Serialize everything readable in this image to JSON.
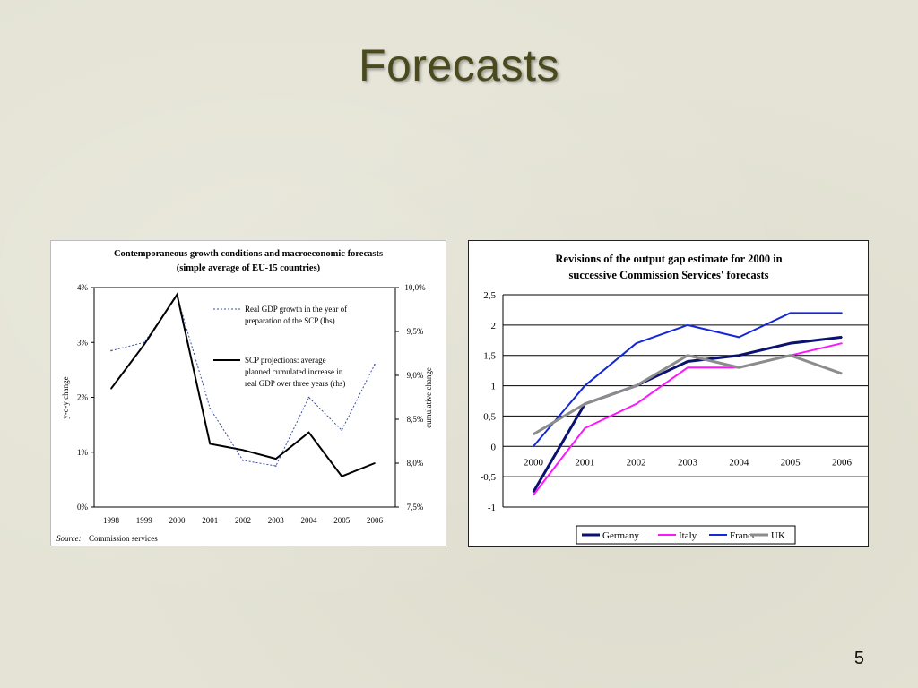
{
  "slide": {
    "title": "Forecasts",
    "page_number": "5"
  },
  "chart_data": [
    {
      "type": "line",
      "title": "Contemporaneous growth conditions and macroeconomic forecasts",
      "subtitle": "(simple average of EU-15 countries)",
      "categories": [
        "1998",
        "1999",
        "2000",
        "2001",
        "2002",
        "2003",
        "2004",
        "2005",
        "2006"
      ],
      "ylabel_left": "y-o-y change",
      "ylabel_right": "cumulative change",
      "left_axis": {
        "ticks": [
          "0%",
          "1%",
          "2%",
          "3%",
          "4%"
        ],
        "tick_values": [
          0,
          1,
          2,
          3,
          4
        ],
        "ylim": [
          0,
          4
        ]
      },
      "right_axis": {
        "ticks": [
          "7,5%",
          "8,0%",
          "8,5%",
          "9,0%",
          "9,5%",
          "10,0%"
        ],
        "tick_values": [
          7.5,
          8.0,
          8.5,
          9.0,
          9.5,
          10.0
        ],
        "ylim": [
          7.5,
          10.0
        ]
      },
      "series": [
        {
          "name": "Real GDP growth in the year of preparation of the SCP (lhs)",
          "legend_lines": [
            "Real GDP growth in the year of",
            "preparation of the SCP (lhs)"
          ],
          "axis": "left",
          "style": "dotted",
          "color": "#3a4fa8",
          "values": [
            2.85,
            3.0,
            3.85,
            1.8,
            0.85,
            0.75,
            2.0,
            1.4,
            2.6
          ]
        },
        {
          "name": "SCP projections: average planned cumulated increase in real GDP over three years (rhs)",
          "legend_lines": [
            "SCP projections: average",
            "planned cumulated increase in",
            "real GDP over three years (rhs)"
          ],
          "axis": "right",
          "style": "solid",
          "color": "#000000",
          "values": [
            8.85,
            9.35,
            9.92,
            8.22,
            8.15,
            8.05,
            8.35,
            7.85,
            8.0
          ]
        }
      ],
      "source_label": "Source:",
      "source_text": "Commission services"
    },
    {
      "type": "line",
      "title_lines": [
        "Revisions of the output gap estimate for 2000 in",
        "successive Commission Services' forecasts"
      ],
      "categories": [
        "2000",
        "2001",
        "2002",
        "2003",
        "2004",
        "2005",
        "2006"
      ],
      "y_ticks": [
        "2,5",
        "2",
        "1,5",
        "1",
        "0,5",
        "0",
        "-0,5",
        "-1"
      ],
      "y_tick_values": [
        2.5,
        2,
        1.5,
        1,
        0.5,
        0,
        -0.5,
        -1
      ],
      "ylim": [
        -1,
        2.5
      ],
      "grid": true,
      "legend_position": "bottom",
      "series": [
        {
          "name": "Germany",
          "color": "#0a1170",
          "width": 3,
          "values": [
            -0.75,
            0.7,
            1.0,
            1.4,
            1.5,
            1.7,
            1.8
          ]
        },
        {
          "name": "Italy",
          "color": "#ff14ff",
          "width": 2,
          "values": [
            -0.8,
            0.3,
            0.7,
            1.3,
            1.3,
            1.5,
            1.7
          ]
        },
        {
          "name": "France",
          "color": "#1428d8",
          "width": 2,
          "values": [
            0.0,
            1.0,
            1.7,
            2.0,
            1.8,
            2.2,
            2.2
          ]
        },
        {
          "name": "UK",
          "color": "#8c8c8c",
          "width": 3,
          "values": [
            0.2,
            0.7,
            1.0,
            1.5,
            1.3,
            1.5,
            1.2
          ]
        }
      ]
    }
  ]
}
